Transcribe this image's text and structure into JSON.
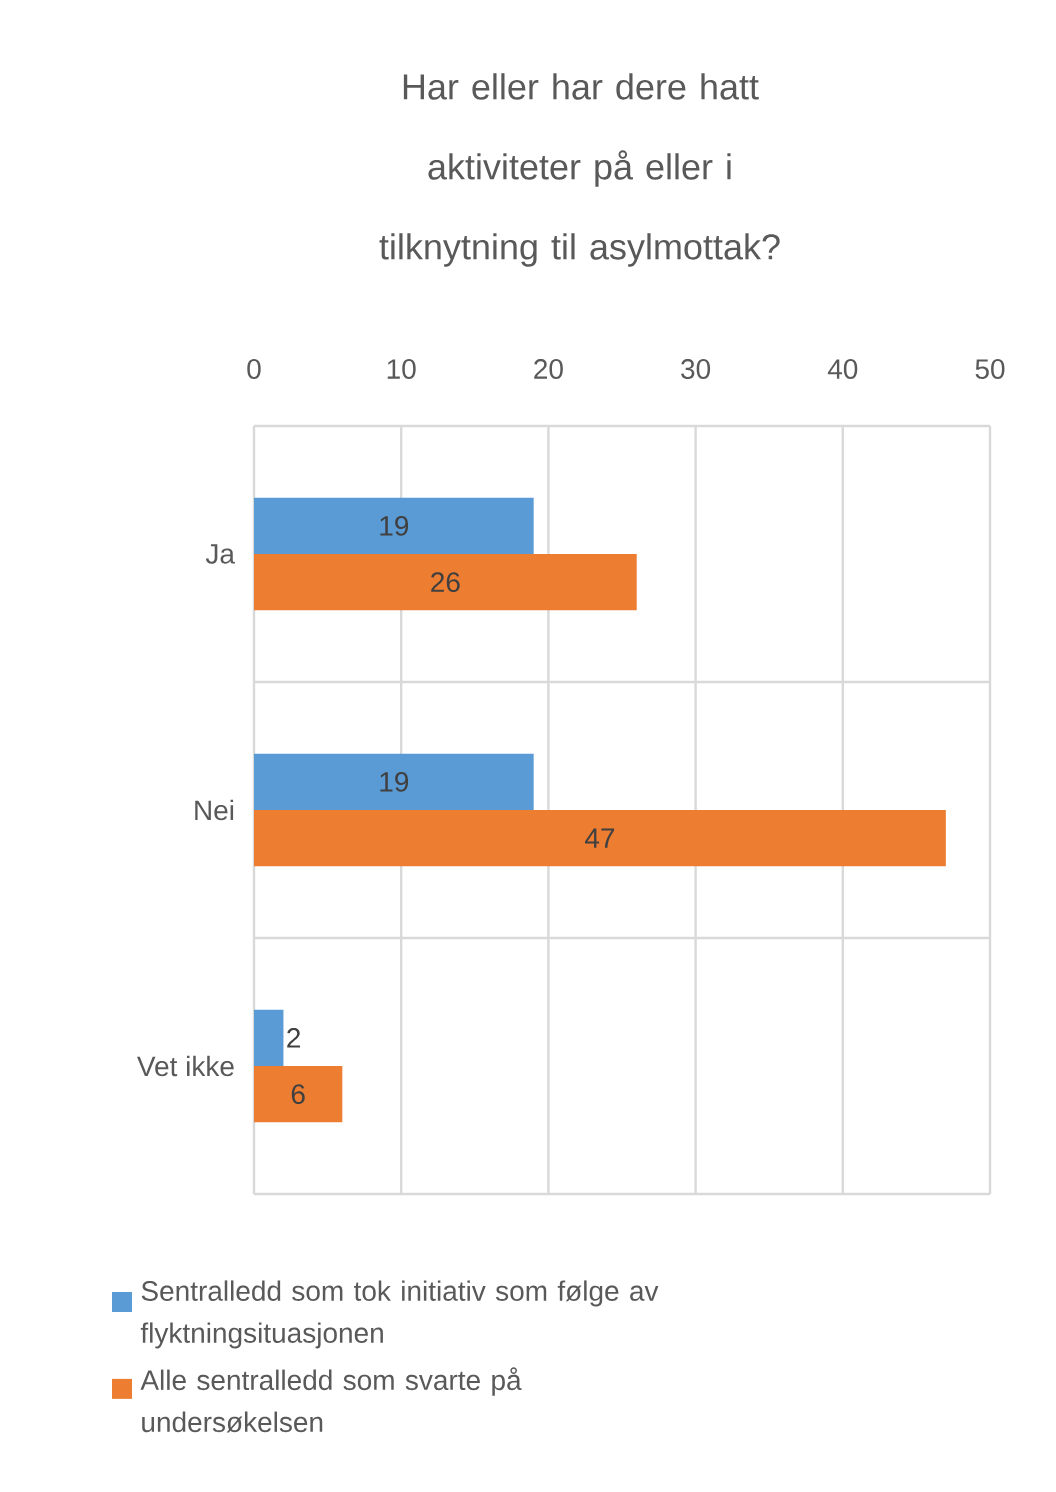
{
  "chart_data": {
    "type": "bar",
    "orientation": "horizontal",
    "title": "Har eller har dere hatt aktiviteter på eller i tilknytning til asylmottak?",
    "categories": [
      "Ja",
      "Nei",
      "Vet ikke"
    ],
    "series": [
      {
        "name": "Sentralledd som tok initiativ som følge av flyktningsituasjonen",
        "color": "#5b9bd5",
        "values": [
          19,
          19,
          2
        ]
      },
      {
        "name": "Alle sentralledd som svarte på undersøkelsen",
        "color": "#ed7d31",
        "values": [
          26,
          47,
          6
        ]
      }
    ],
    "xlim": [
      0,
      50
    ],
    "xticks": [
      0,
      10,
      20,
      30,
      40,
      50
    ],
    "grid": true,
    "data_labels": true,
    "legend": "bottom"
  }
}
